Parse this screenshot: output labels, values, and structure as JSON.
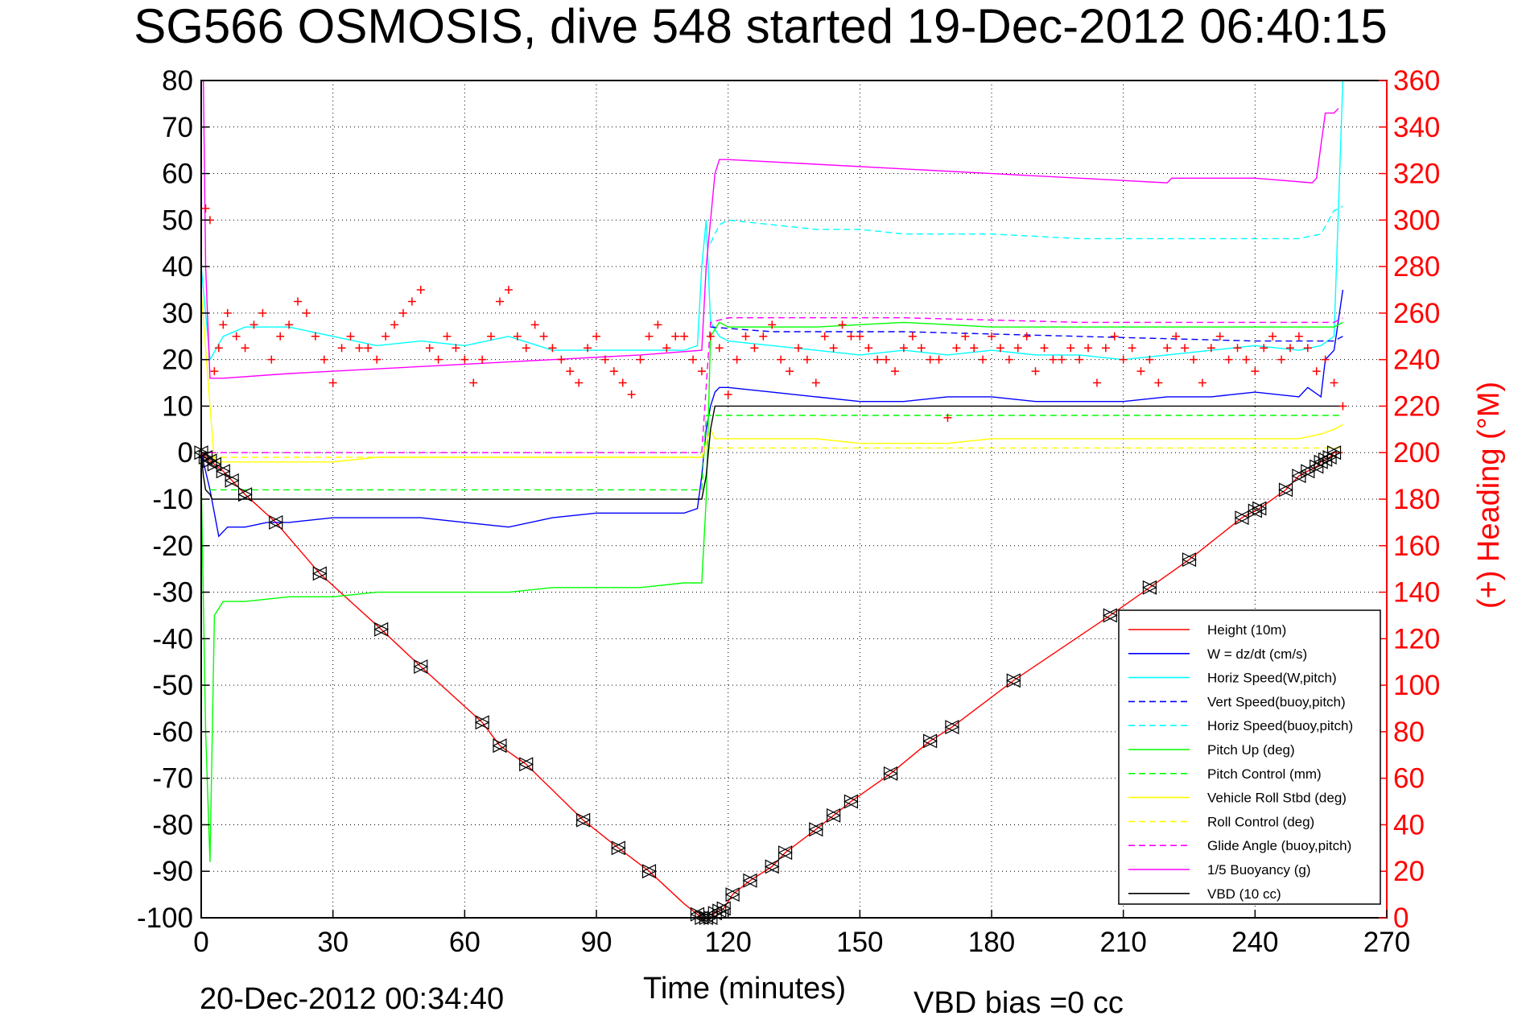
{
  "title": "SG566 OSMOSIS, dive 548 started 19-Dec-2012 06:40:15",
  "xlabel": "Time (minutes)",
  "ylabel_right": "(+) Heading (°M)",
  "footer_left": "20-Dec-2012 00:34:40",
  "footer_right": "VBD bias =0 cc",
  "colors": {
    "height": "#ff0000",
    "w": "#0000ff",
    "horiz_speed": "#00ffff",
    "pitch": "#00ff00",
    "roll": "#ffff00",
    "buoyancy": "#ff00ff",
    "vbd": "#000000",
    "heading": "#ff0000"
  },
  "chart_data": {
    "type": "line",
    "x_axis": {
      "range": [
        0,
        270
      ],
      "ticks": [
        "0",
        "30",
        "60",
        "90",
        "120",
        "150",
        "180",
        "210",
        "240",
        "270"
      ]
    },
    "y_left": {
      "range": [
        -100,
        80
      ],
      "ticks": [
        "80",
        "70",
        "60",
        "50",
        "40",
        "30",
        "20",
        "10",
        "0",
        "-10",
        "-20",
        "-30",
        "-40",
        "-50",
        "-60",
        "-70",
        "-80",
        "-90",
        "-100"
      ]
    },
    "y_right": {
      "range": [
        0,
        360
      ],
      "ticks": [
        "360",
        "340",
        "320",
        "300",
        "280",
        "260",
        "240",
        "220",
        "200",
        "180",
        "160",
        "140",
        "120",
        "100",
        "80",
        "60",
        "40",
        "20",
        "0"
      ]
    },
    "grid": true,
    "legend_position": "bottom-right",
    "legend": [
      {
        "label": "Height (10m)",
        "color": "#ff0000",
        "style": "solid"
      },
      {
        "label": "W = dz/dt (cm/s)",
        "color": "#0000ff",
        "style": "solid"
      },
      {
        "label": "Horiz Speed(W,pitch)",
        "color": "#00ffff",
        "style": "solid"
      },
      {
        "label": "Vert Speed(buoy,pitch)",
        "color": "#0000ff",
        "style": "dashed"
      },
      {
        "label": "Horiz Speed(buoy,pitch)",
        "color": "#00ffff",
        "style": "dashed"
      },
      {
        "label": "Pitch Up (deg)",
        "color": "#00ff00",
        "style": "solid"
      },
      {
        "label": "Pitch Control (mm)",
        "color": "#00ff00",
        "style": "dashed"
      },
      {
        "label": "Vehicle Roll Stbd (deg)",
        "color": "#ffff00",
        "style": "solid"
      },
      {
        "label": "Roll Control (deg)",
        "color": "#ffff00",
        "style": "dashed"
      },
      {
        "label": "Glide Angle (buoy,pitch)",
        "color": "#ff00ff",
        "style": "dashed"
      },
      {
        "label": "1/5 Buoyancy (g)",
        "color": "#ff00ff",
        "style": "solid"
      },
      {
        "label": "VBD (10 cc)",
        "color": "#000000",
        "style": "solid"
      }
    ],
    "series": [
      {
        "name": "Height (10m)",
        "axis": "left",
        "style": "solid",
        "color": "#ff0000",
        "x": [
          0,
          1,
          5,
          10,
          17,
          27,
          41,
          50,
          64,
          68,
          74,
          87,
          95,
          102,
          110,
          114,
          116,
          117,
          119,
          121,
          125,
          130,
          133,
          140,
          144,
          148,
          157,
          166,
          171,
          185,
          207,
          216,
          225,
          237,
          241,
          247,
          250,
          252,
          254,
          255,
          257,
          258,
          260
        ],
        "y": [
          0,
          -1,
          -4,
          -9,
          -15,
          -26,
          -38,
          -46,
          -58,
          -63,
          -67,
          -79,
          -85,
          -90,
          -97,
          -100,
          -100,
          -99,
          -98,
          -95,
          -92,
          -89,
          -86,
          -81,
          -78,
          -75,
          -69,
          -62,
          -59,
          -49,
          -35,
          -29,
          -23,
          -14,
          -12,
          -8,
          -5,
          -4,
          -3,
          -2,
          -1,
          0,
          0
        ]
      },
      {
        "name": "W = dz/dt (cm/s)",
        "axis": "left",
        "style": "solid",
        "color": "#0000ff",
        "x": [
          0,
          2,
          4,
          6,
          10,
          15,
          20,
          30,
          40,
          50,
          60,
          70,
          80,
          90,
          100,
          110,
          113,
          114,
          115,
          116,
          117,
          118,
          120,
          130,
          140,
          150,
          160,
          170,
          180,
          190,
          200,
          210,
          220,
          230,
          240,
          250,
          252,
          255,
          256,
          258,
          260
        ],
        "y": [
          0,
          -8,
          -18,
          -16,
          -16,
          -15,
          -15,
          -14,
          -14,
          -14,
          -15,
          -16,
          -14,
          -13,
          -13,
          -13,
          -12,
          -5,
          5,
          10,
          13,
          14,
          14,
          13,
          12,
          11,
          11,
          12,
          12,
          11,
          11,
          11,
          12,
          12,
          13,
          12,
          14,
          12,
          20,
          22,
          35
        ]
      },
      {
        "name": "Horiz Speed(W,pitch)",
        "axis": "left",
        "style": "solid",
        "color": "#00ffff",
        "x": [
          0,
          2,
          5,
          10,
          20,
          30,
          40,
          50,
          60,
          70,
          80,
          90,
          100,
          110,
          113,
          114,
          115,
          116,
          118,
          120,
          130,
          140,
          150,
          160,
          170,
          180,
          190,
          200,
          210,
          220,
          230,
          240,
          250,
          255,
          258,
          260
        ],
        "y": [
          40,
          20,
          25,
          27,
          27,
          25,
          23,
          24,
          23,
          25,
          22,
          22,
          22,
          22,
          23,
          40,
          50,
          28,
          25,
          24,
          23,
          22,
          21,
          22,
          21,
          22,
          21,
          21,
          20,
          21,
          22,
          23,
          22,
          23,
          25,
          80
        ]
      },
      {
        "name": "Vert Speed(buoy,pitch)",
        "axis": "left",
        "style": "dashed",
        "color": "#0000ff",
        "x": [
          116,
          130,
          160,
          200,
          240,
          258,
          260
        ],
        "y": [
          27,
          26,
          26,
          25,
          24,
          24,
          25
        ]
      },
      {
        "name": "Horiz Speed(buoy,pitch)",
        "axis": "left",
        "style": "dashed",
        "color": "#00ffff",
        "x": [
          116,
          118,
          120,
          130,
          140,
          150,
          160,
          170,
          180,
          200,
          220,
          240,
          250,
          255,
          258,
          260
        ],
        "y": [
          45,
          49,
          50,
          49,
          48,
          48,
          47,
          47,
          47,
          46,
          46,
          46,
          46,
          47,
          52,
          53
        ]
      },
      {
        "name": "Pitch Up (deg)",
        "axis": "left",
        "style": "solid",
        "color": "#00ff00",
        "x": [
          0,
          1,
          2,
          3,
          5,
          10,
          20,
          30,
          40,
          50,
          60,
          70,
          80,
          90,
          100,
          110,
          114,
          115,
          116,
          118,
          120,
          140,
          160,
          180,
          200,
          220,
          240,
          258,
          260
        ],
        "y": [
          -5,
          -60,
          -88,
          -35,
          -32,
          -32,
          -31,
          -31,
          -30,
          -30,
          -30,
          -30,
          -29,
          -29,
          -29,
          -28,
          -28,
          -10,
          25,
          28,
          27,
          27,
          28,
          27,
          27,
          27,
          27,
          27,
          28
        ]
      },
      {
        "name": "Pitch Control (mm)",
        "axis": "left",
        "style": "dashed",
        "color": "#00ff00",
        "x": [
          2,
          114,
          115,
          117,
          260
        ],
        "y": [
          -8,
          -8,
          8,
          8,
          8
        ]
      },
      {
        "name": "Vehicle Roll Stbd (deg)",
        "axis": "left",
        "style": "solid",
        "color": "#ffff00",
        "x": [
          0,
          2,
          3,
          10,
          20,
          30,
          40,
          50,
          60,
          70,
          80,
          90,
          100,
          110,
          114,
          116,
          117,
          120,
          130,
          140,
          150,
          160,
          170,
          180,
          190,
          200,
          210,
          220,
          230,
          240,
          250,
          255,
          258,
          260
        ],
        "y": [
          35,
          10,
          -2,
          -2,
          -2,
          -2,
          -1,
          -1,
          -1,
          -1,
          -1,
          -1,
          -1,
          -1,
          -1,
          5,
          3,
          3,
          3,
          3,
          2,
          2,
          2,
          3,
          3,
          3,
          3,
          3,
          3,
          3,
          3,
          4,
          5,
          6
        ]
      },
      {
        "name": "Roll Control (deg)",
        "axis": "left",
        "style": "dashed",
        "color": "#ffff00",
        "x": [
          2,
          114,
          115,
          260
        ],
        "y": [
          -1,
          -1,
          1,
          1
        ]
      },
      {
        "name": "Glide Angle (buoy,pitch)",
        "axis": "left",
        "style": "dashed",
        "color": "#ff00ff",
        "x": [
          2,
          114,
          116,
          120,
          160,
          200,
          240,
          258,
          260
        ],
        "y": [
          0,
          0,
          28,
          29,
          29,
          28,
          28,
          28,
          29
        ]
      },
      {
        "name": "1/5 Buoyancy (g)",
        "axis": "left",
        "style": "solid",
        "color": "#ff00ff",
        "x": [
          0.5,
          1,
          2,
          5,
          20,
          40,
          60,
          80,
          100,
          114,
          115,
          117,
          118,
          120,
          140,
          160,
          180,
          200,
          220,
          221,
          240,
          253,
          254,
          256,
          258,
          259
        ],
        "y": [
          80,
          40,
          16,
          16,
          17,
          18,
          19,
          20,
          21,
          22,
          40,
          60,
          63,
          63,
          62,
          61,
          60,
          59,
          58,
          59,
          59,
          58,
          59,
          73,
          73,
          74
        ]
      },
      {
        "name": "VBD (10 cc)",
        "axis": "left",
        "style": "solid",
        "color": "#000000",
        "x": [
          0,
          0.5,
          1,
          2,
          2.5,
          114,
          115,
          116,
          117,
          118,
          120,
          260
        ],
        "y": [
          0,
          -5,
          -8,
          -9,
          -10,
          -10,
          -5,
          5,
          10,
          10,
          10,
          10
        ]
      },
      {
        "name": "(+) Heading (°M)",
        "axis": "right",
        "style": "markers",
        "color": "#ff0000",
        "x": [
          1,
          2,
          3,
          4,
          5,
          6,
          8,
          10,
          12,
          14,
          16,
          18,
          20,
          22,
          24,
          26,
          28,
          30,
          32,
          34,
          36,
          38,
          40,
          42,
          44,
          46,
          48,
          50,
          52,
          54,
          56,
          58,
          60,
          62,
          64,
          66,
          68,
          70,
          72,
          74,
          76,
          78,
          80,
          82,
          84,
          86,
          88,
          90,
          92,
          94,
          96,
          98,
          100,
          102,
          104,
          106,
          108,
          110,
          112,
          114,
          116,
          118,
          120,
          122,
          124,
          126,
          128,
          130,
          132,
          134,
          136,
          138,
          140,
          142,
          144,
          146,
          148,
          150,
          152,
          154,
          156,
          158,
          160,
          162,
          164,
          166,
          168,
          170,
          172,
          174,
          176,
          178,
          180,
          182,
          184,
          186,
          188,
          190,
          192,
          194,
          196,
          198,
          200,
          202,
          204,
          206,
          208,
          210,
          212,
          214,
          216,
          218,
          220,
          222,
          224,
          226,
          228,
          230,
          232,
          234,
          236,
          238,
          240,
          242,
          244,
          246,
          248,
          250,
          252,
          254,
          256,
          258,
          260
        ],
        "y": [
          305,
          300,
          235,
          245,
          255,
          260,
          250,
          245,
          255,
          260,
          240,
          250,
          255,
          265,
          260,
          250,
          240,
          230,
          245,
          250,
          245,
          245,
          240,
          250,
          255,
          260,
          265,
          270,
          245,
          240,
          250,
          245,
          240,
          230,
          240,
          250,
          265,
          270,
          250,
          245,
          255,
          250,
          245,
          240,
          235,
          230,
          245,
          250,
          240,
          235,
          230,
          225,
          240,
          250,
          255,
          245,
          250,
          250,
          240,
          235,
          250,
          245,
          225,
          240,
          250,
          245,
          250,
          255,
          240,
          235,
          245,
          240,
          230,
          250,
          245,
          255,
          250,
          250,
          245,
          240,
          240,
          235,
          245,
          250,
          245,
          240,
          240,
          215,
          245,
          250,
          245,
          240,
          250,
          245,
          240,
          245,
          250,
          235,
          245,
          240,
          240,
          245,
          240,
          245,
          230,
          245,
          250,
          240,
          245,
          235,
          240,
          230,
          245,
          250,
          245,
          240,
          230,
          245,
          250,
          240,
          245,
          240,
          235,
          245,
          250,
          240,
          245,
          250,
          245,
          235,
          240,
          230,
          220
        ]
      }
    ]
  },
  "markers": {
    "triangles_x": [
      0,
      1,
      2,
      3,
      5,
      7,
      10,
      17,
      27,
      41,
      50,
      64,
      68,
      74,
      87,
      95,
      102,
      113,
      114,
      115,
      116,
      117,
      118,
      119,
      121,
      125,
      130,
      133,
      140,
      144,
      148,
      157,
      166,
      171,
      185,
      207,
      216,
      225,
      237,
      240,
      241,
      247,
      250,
      252,
      254,
      255,
      256,
      257,
      258
    ]
  }
}
